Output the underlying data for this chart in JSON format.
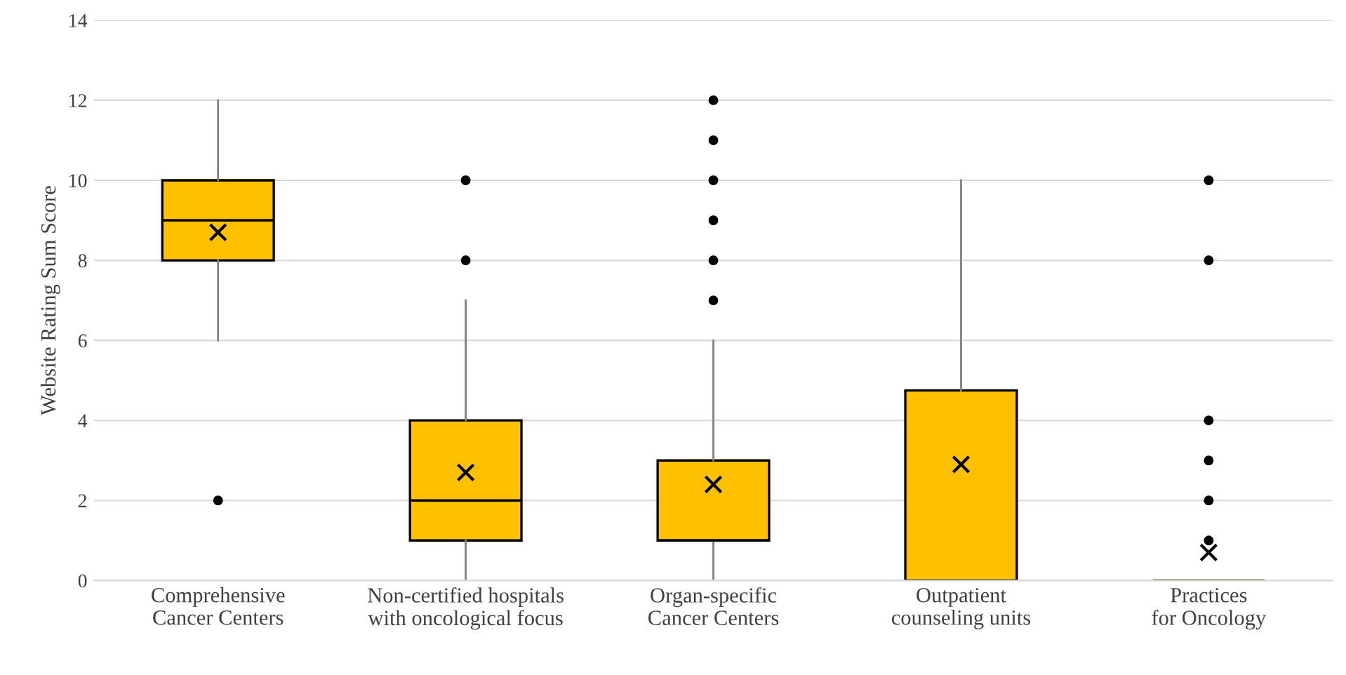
{
  "chart_data": {
    "type": "box",
    "ylabel": "Website Rating Sum Score",
    "categories": [
      "Comprehensive Cancer Centers",
      "Non-certified hospitals with oncological focus",
      "Organ-specific Cancer Centers",
      "Outpatient counseling units",
      "Practices for Oncology"
    ],
    "boxes": [
      {
        "low": 6,
        "q1": 8,
        "median": 9,
        "q3": 10,
        "high": 12,
        "mean": 8.7,
        "outliers": [
          2
        ]
      },
      {
        "low": 0,
        "q1": 1,
        "median": 2,
        "q3": 4,
        "high": 7,
        "mean": 2.7,
        "outliers": [
          8,
          10
        ]
      },
      {
        "low": 0,
        "q1": 1,
        "median": 1,
        "q3": 3,
        "high": 6,
        "mean": 2.4,
        "outliers": [
          7,
          8,
          9,
          10,
          11,
          12
        ]
      },
      {
        "low": 0,
        "q1": 0,
        "median": 0,
        "q3": 4.75,
        "high": 10,
        "mean": 2.9
      },
      {
        "low": 0,
        "q1": 0,
        "median": 0,
        "q3": 0,
        "high": 0,
        "mean": 0.7,
        "outliers": [
          1,
          2,
          3,
          4,
          8,
          10
        ]
      }
    ],
    "color": "#ffc000",
    "ylim": [
      0,
      14
    ],
    "yticks": [
      0,
      2,
      4,
      6,
      8,
      10,
      12,
      14
    ],
    "grid": "y",
    "marker": "cross"
  }
}
